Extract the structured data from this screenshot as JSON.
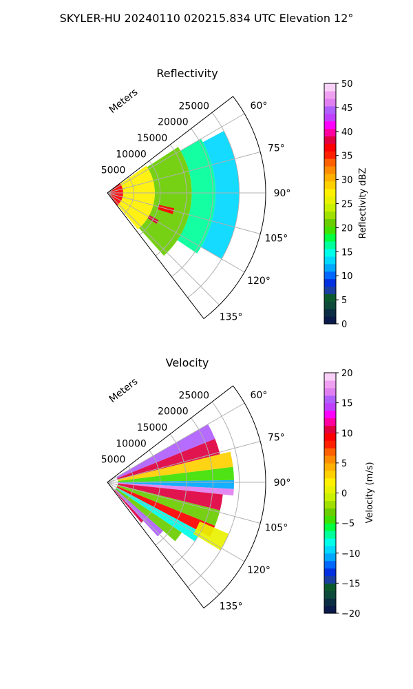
{
  "figure": {
    "suptitle": "SKYLER-HU  20240110  020215.834 UTC Elevation 12°"
  },
  "chart_data": [
    {
      "type": "heatmap",
      "projection": "polar-sector",
      "title": "Reflectivity",
      "r_axis_label": "Meters",
      "r_ticks": [
        5000,
        10000,
        15000,
        20000,
        25000
      ],
      "r_tick_labels": [
        "5000",
        "10000",
        "15000",
        "20000",
        "25000"
      ],
      "r_max": 30000,
      "theta_range_deg": [
        52.5,
        142.5
      ],
      "theta_ticks": [
        60,
        75,
        90,
        105,
        120,
        135
      ],
      "theta_tick_labels": [
        "60°",
        "75°",
        "90°",
        "105°",
        "120°",
        "135°"
      ],
      "grid": true,
      "colorbar": {
        "label": "Reflectivity dBZ",
        "min": 0,
        "max": 50,
        "ticks": [
          0,
          5,
          10,
          15,
          20,
          25,
          30,
          35,
          40,
          45,
          50
        ],
        "tick_labels": [
          "0",
          "5",
          "10",
          "15",
          "20",
          "25",
          "30",
          "35",
          "40",
          "45",
          "50"
        ],
        "colors": [
          "#0a1a4a",
          "#0b2e44",
          "#0d4a3a",
          "#0a5a2e",
          "#1a3fa0",
          "#0030e0",
          "#0068ff",
          "#00a8ff",
          "#00d8ff",
          "#00ffe8",
          "#00ff9a",
          "#00ff40",
          "#40e000",
          "#6acd00",
          "#a0e000",
          "#c8f000",
          "#e8f200",
          "#fff000",
          "#ffd000",
          "#ffb000",
          "#ff8c00",
          "#ff6000",
          "#ff2000",
          "#ff0000",
          "#e00040",
          "#ff00a0",
          "#ff00ff",
          "#c040ff",
          "#b060ff",
          "#e080f0",
          "#f0a0f0",
          "#f8d0f8"
        ]
      },
      "echo_regions": [
        {
          "theta": [
            52.5,
            142.5
          ],
          "r": [
            0,
            3000
          ],
          "value": 36
        },
        {
          "theta": [
            55,
            140
          ],
          "r": [
            3000,
            9000
          ],
          "value": 27
        },
        {
          "theta": [
            57,
            138
          ],
          "r": [
            9000,
            16000
          ],
          "value": 21
        },
        {
          "theta": [
            60,
            124
          ],
          "r": [
            16000,
            20500
          ],
          "value": 17
        },
        {
          "theta": [
            62,
            120
          ],
          "r": [
            20500,
            25000
          ],
          "value": 14
        },
        {
          "theta": [
            103,
            108
          ],
          "r": [
            10000,
            13000
          ],
          "value": 37
        },
        {
          "theta": [
            118,
            122
          ],
          "r": [
            9000,
            11000
          ],
          "value": 38
        }
      ]
    },
    {
      "type": "heatmap",
      "projection": "polar-sector",
      "title": "Velocity",
      "r_axis_label": "Meters",
      "r_ticks": [
        5000,
        10000,
        15000,
        20000,
        25000
      ],
      "r_tick_labels": [
        "5000",
        "10000",
        "15000",
        "20000",
        "25000"
      ],
      "r_max": 30000,
      "theta_range_deg": [
        52.5,
        142.5
      ],
      "theta_ticks": [
        60,
        75,
        90,
        105,
        120,
        135
      ],
      "theta_tick_labels": [
        "60°",
        "75°",
        "90°",
        "105°",
        "120°",
        "135°"
      ],
      "grid": true,
      "colorbar": {
        "label": "Velocity (m/s)",
        "min": -20,
        "max": 20,
        "ticks": [
          -20,
          -15,
          -10,
          -5,
          0,
          5,
          10,
          15,
          20
        ],
        "tick_labels": [
          "−20",
          "−15",
          "−10",
          "−5",
          "0",
          "5",
          "10",
          "15",
          "20"
        ],
        "colors": [
          "#0a1a4a",
          "#0b2e44",
          "#0d4a3a",
          "#0a5a2e",
          "#1a3fa0",
          "#0030e0",
          "#0068ff",
          "#00a8ff",
          "#00d8ff",
          "#00ffe8",
          "#00ff9a",
          "#00ff40",
          "#40e000",
          "#6acd00",
          "#a0e000",
          "#c8f000",
          "#e8f200",
          "#fff000",
          "#ffd000",
          "#ffb000",
          "#ff8c00",
          "#ff6000",
          "#ff2000",
          "#ff0000",
          "#e00040",
          "#ff00a0",
          "#ff00ff",
          "#c040ff",
          "#b060ff",
          "#e080f0",
          "#f0a0f0",
          "#f8d0f8"
        ]
      },
      "echo_regions": [
        {
          "theta": [
            60,
            68
          ],
          "r": [
            2000,
            22000
          ],
          "value": 16
        },
        {
          "theta": [
            68,
            76
          ],
          "r": [
            2000,
            22000
          ],
          "value": 10
        },
        {
          "theta": [
            76,
            83
          ],
          "r": [
            2000,
            24000
          ],
          "value": 3
        },
        {
          "theta": [
            83,
            89
          ],
          "r": [
            2000,
            24000
          ],
          "value": -5
        },
        {
          "theta": [
            89,
            93
          ],
          "r": [
            2000,
            24000
          ],
          "value": -11
        },
        {
          "theta": [
            93,
            96
          ],
          "r": [
            2000,
            24000
          ],
          "value": 17
        },
        {
          "theta": [
            96,
            104
          ],
          "r": [
            2000,
            22000
          ],
          "value": 10
        },
        {
          "theta": [
            104,
            112
          ],
          "r": [
            2000,
            22000
          ],
          "value": -3
        },
        {
          "theta": [
            112,
            118
          ],
          "r": [
            2000,
            22000
          ],
          "value": 9
        },
        {
          "theta": [
            118,
            124
          ],
          "r": [
            2000,
            20000
          ],
          "value": -8
        },
        {
          "theta": [
            124,
            131
          ],
          "r": [
            2000,
            17000
          ],
          "value": -3
        },
        {
          "theta": [
            131,
            137
          ],
          "r": [
            2000,
            14000
          ],
          "value": 16
        },
        {
          "theta": [
            137,
            140
          ],
          "r": [
            2000,
            10000
          ],
          "value": 10
        },
        {
          "theta": [
            113,
            121
          ],
          "r": [
            19000,
            25000
          ],
          "value": 1
        }
      ]
    }
  ]
}
